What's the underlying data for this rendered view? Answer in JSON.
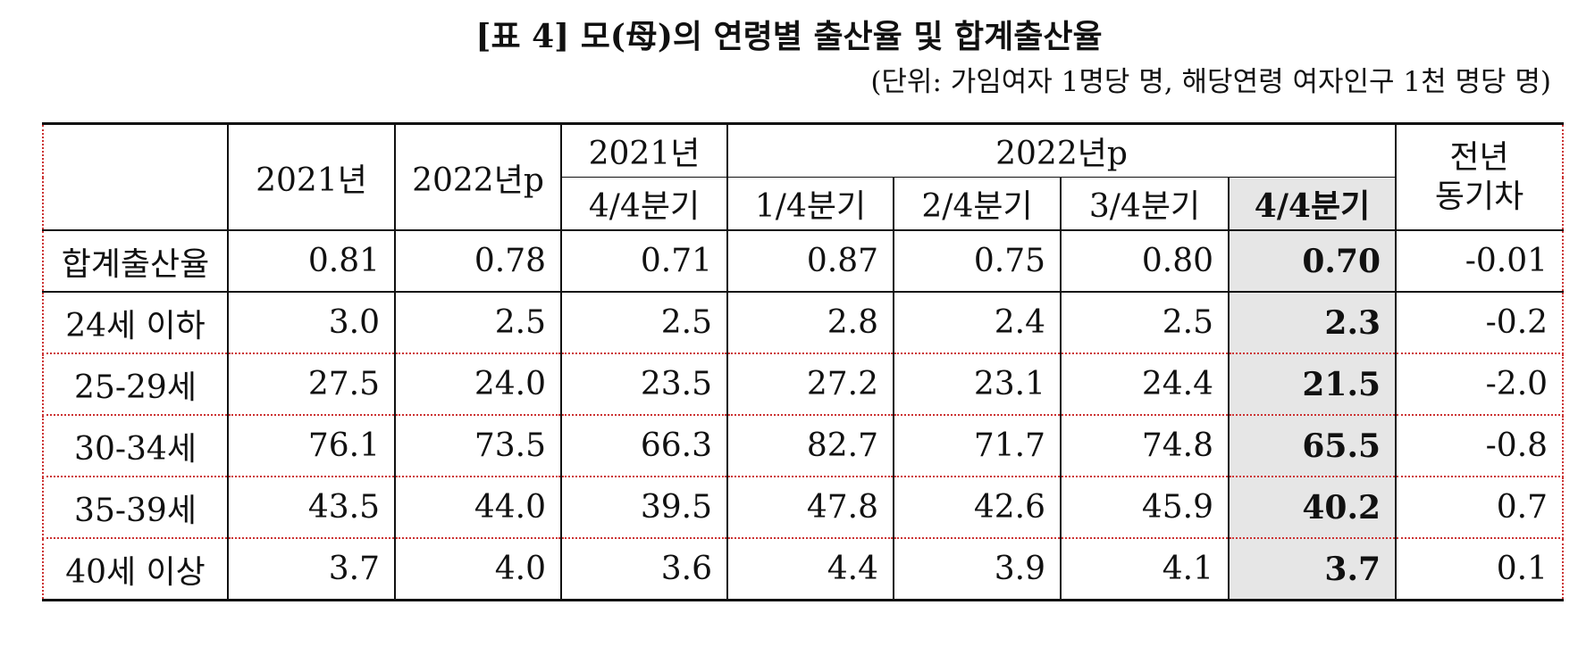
{
  "title": "[표 4] 모(母)의 연령별 출산율 및 합계출산율",
  "unit_note": "(단위: 가임여자 1명당 명, 해당연령 여자인구 1천 명당 명)",
  "table": {
    "header_top": [
      "2021년",
      "2022년p",
      "2021년",
      "2022년p",
      [
        "전년",
        "동기차"
      ]
    ],
    "header_quarters": [
      "4/4분기",
      "1/4분기",
      "2/4분기",
      "3/4분기",
      "4/4분기"
    ],
    "rows": [
      {
        "label": "합계출산율",
        "values": [
          "0.81",
          "0.78",
          "0.71",
          "0.87",
          "0.75",
          "0.80",
          "0.70",
          "-0.01"
        ]
      },
      {
        "label": "24세 이하",
        "values": [
          "3.0",
          "2.5",
          "2.5",
          "2.8",
          "2.4",
          "2.5",
          "2.3",
          "-0.2"
        ]
      },
      {
        "label": "25-29세",
        "values": [
          "27.5",
          "24.0",
          "23.5",
          "27.2",
          "23.1",
          "24.4",
          "21.5",
          "-2.0"
        ]
      },
      {
        "label": "30-34세",
        "values": [
          "76.1",
          "73.5",
          "66.3",
          "82.7",
          "71.7",
          "74.8",
          "65.5",
          "-0.8"
        ]
      },
      {
        "label": "35-39세",
        "values": [
          "43.5",
          "44.0",
          "39.5",
          "47.8",
          "42.6",
          "45.9",
          "40.2",
          "0.7"
        ]
      },
      {
        "label": "40세 이상",
        "values": [
          "3.7",
          "4.0",
          "3.6",
          "4.4",
          "3.9",
          "4.1",
          "3.7",
          "0.1"
        ]
      }
    ]
  }
}
